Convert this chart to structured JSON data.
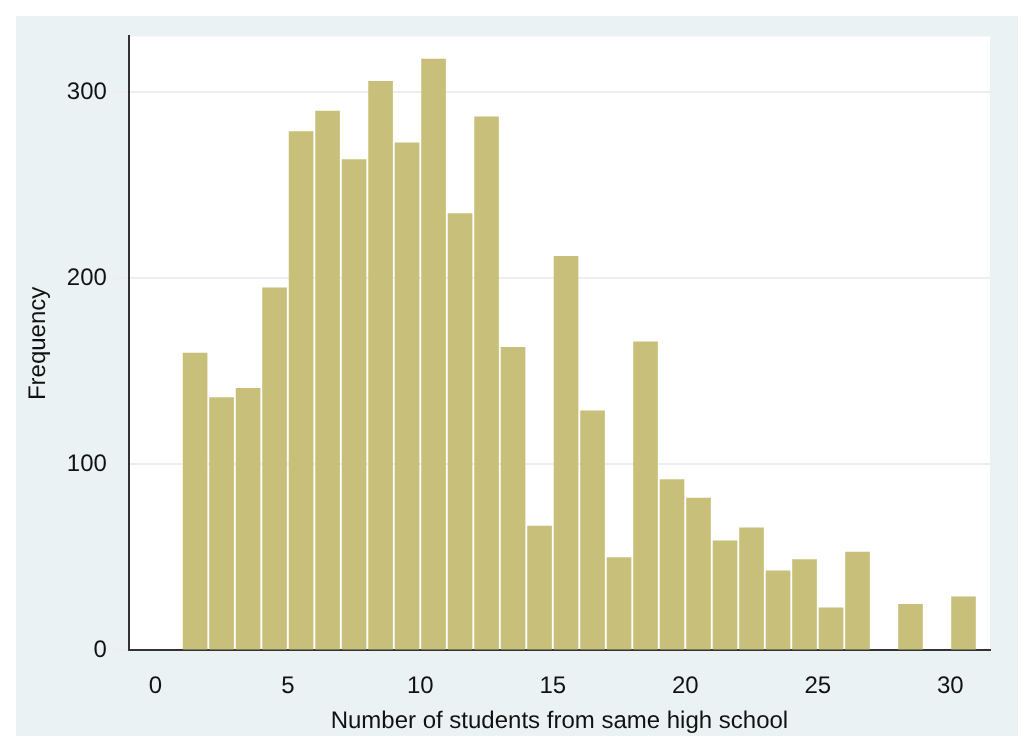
{
  "chart_data": {
    "type": "histogram",
    "xlabel": "Number of students from same high school",
    "ylabel": "Frequency",
    "bins": [
      1,
      2,
      3,
      4,
      5,
      6,
      7,
      8,
      9,
      10,
      11,
      12,
      13,
      14,
      15,
      16,
      17,
      18,
      19,
      20,
      21,
      22,
      23,
      24,
      25,
      26,
      27,
      28,
      29,
      30,
      31
    ],
    "values": [
      160,
      136,
      141,
      195,
      279,
      290,
      264,
      306,
      273,
      318,
      235,
      287,
      163,
      67,
      212,
      129,
      50,
      166,
      92,
      82,
      59,
      66,
      43,
      49,
      23,
      53,
      0,
      25,
      0,
      29
    ],
    "color": "#c8c07a",
    "xlim": [
      -1,
      31.5
    ],
    "xticks": [
      0,
      5,
      10,
      15,
      20,
      25,
      30
    ],
    "ylim": [
      0,
      330
    ],
    "yticks": [
      0,
      100,
      200,
      300
    ],
    "grid": "y"
  }
}
